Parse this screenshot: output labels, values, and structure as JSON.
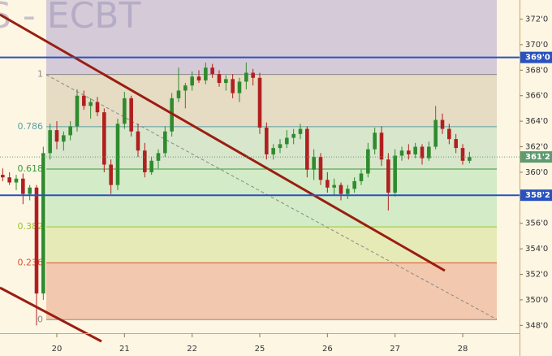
{
  "chart_data": {
    "type": "candlestick",
    "title": "S - ECBT",
    "xlim": [
      -0.4,
      76.4
    ],
    "ylim": [
      345.6,
      373.5
    ],
    "xticks": [
      {
        "value": 8,
        "label": "20"
      },
      {
        "value": 18,
        "label": "21"
      },
      {
        "value": 28,
        "label": "22"
      },
      {
        "value": 38,
        "label": "25"
      },
      {
        "value": 48,
        "label": "26"
      },
      {
        "value": 58,
        "label": "27"
      },
      {
        "value": 68,
        "label": "28"
      }
    ],
    "yticks": [
      {
        "value": 348,
        "label": "348'0"
      },
      {
        "value": 350,
        "label": "350'0"
      },
      {
        "value": 352,
        "label": "352'0"
      },
      {
        "value": 354,
        "label": "354'0"
      },
      {
        "value": 356,
        "label": "356'0"
      },
      {
        "value": 358,
        "label": "358'0"
      },
      {
        "value": 360,
        "label": "360'0"
      },
      {
        "value": 362,
        "label": "362'0"
      },
      {
        "value": 364,
        "label": "364'0"
      },
      {
        "value": 366,
        "label": "366'0"
      },
      {
        "value": 368,
        "label": "368'0"
      },
      {
        "value": 370,
        "label": "370'0"
      },
      {
        "value": 372,
        "label": "372'0"
      }
    ],
    "up_color": "#2e8b2e",
    "down_color": "#b02020",
    "open": [
      359.8,
      359.6,
      359.2,
      359.5,
      358.3,
      358.8,
      350.5,
      361.5,
      363.3,
      362.4,
      362.9,
      363.6,
      366.0,
      365.2,
      365.5,
      364.7,
      360.6,
      359.0,
      363.8,
      365.8,
      363.2,
      361.7,
      360.0,
      360.9,
      361.5,
      363.2,
      365.8,
      366.4,
      366.8,
      367.5,
      367.2,
      368.2,
      367.7,
      367.0,
      367.3,
      366.2,
      367.1,
      367.8,
      367.4,
      363.5,
      361.4,
      361.9,
      362.2,
      362.7,
      363.0,
      363.4,
      360.2,
      361.2,
      359.4,
      358.8,
      359.0,
      358.3,
      358.7,
      359.3,
      359.9,
      361.8,
      363.1,
      361.0,
      358.4,
      361.3,
      361.7,
      361.4,
      362.0,
      361.1,
      362.0,
      364.1,
      363.4,
      362.6,
      361.9,
      360.9
    ],
    "high": [
      360.3,
      360.0,
      359.8,
      359.9,
      359.0,
      359.0,
      362.0,
      363.8,
      364.0,
      363.2,
      364.0,
      366.5,
      366.4,
      365.8,
      365.9,
      365.0,
      361.0,
      364.2,
      366.3,
      366.0,
      363.8,
      362.3,
      361.2,
      361.8,
      363.6,
      366.2,
      368.2,
      367.0,
      367.9,
      368.0,
      368.6,
      368.5,
      368.0,
      367.6,
      367.7,
      367.4,
      368.6,
      368.1,
      367.8,
      363.9,
      362.2,
      362.6,
      363.3,
      363.4,
      363.8,
      363.6,
      361.8,
      361.5,
      360.0,
      359.5,
      359.2,
      359.0,
      359.6,
      360.2,
      362.3,
      363.5,
      363.6,
      361.5,
      361.8,
      362.0,
      362.2,
      362.3,
      362.2,
      362.4,
      365.2,
      364.6,
      363.8,
      363.0,
      362.2,
      361.6
    ],
    "low": [
      359.3,
      359.0,
      358.6,
      357.5,
      357.8,
      348.0,
      350.0,
      361.0,
      361.8,
      361.7,
      362.5,
      363.2,
      364.9,
      364.2,
      364.4,
      360.0,
      358.3,
      358.6,
      363.4,
      362.8,
      361.2,
      359.6,
      359.8,
      360.3,
      361.2,
      362.8,
      365.5,
      365.0,
      366.4,
      367.0,
      366.9,
      367.4,
      366.7,
      366.4,
      365.8,
      365.5,
      366.5,
      366.8,
      363.0,
      361.0,
      361.0,
      361.5,
      361.9,
      362.2,
      362.6,
      359.6,
      359.4,
      359.0,
      358.4,
      358.2,
      357.8,
      357.9,
      358.4,
      359.0,
      359.6,
      361.4,
      360.5,
      357.0,
      358.1,
      360.9,
      361.0,
      361.1,
      360.6,
      360.9,
      361.8,
      363.0,
      362.2,
      361.5,
      360.6,
      360.7
    ],
    "close": [
      359.6,
      359.2,
      359.5,
      358.3,
      358.8,
      350.5,
      361.5,
      363.3,
      362.4,
      362.9,
      363.6,
      366.0,
      365.2,
      365.5,
      364.7,
      360.6,
      359.0,
      363.8,
      365.8,
      363.2,
      361.7,
      360.0,
      360.9,
      361.5,
      363.2,
      365.8,
      366.4,
      366.8,
      367.5,
      367.2,
      368.2,
      367.7,
      367.0,
      367.3,
      366.2,
      367.1,
      367.8,
      367.4,
      363.5,
      361.4,
      361.9,
      362.2,
      362.7,
      363.0,
      363.4,
      360.2,
      361.2,
      359.4,
      358.8,
      359.0,
      358.3,
      358.7,
      359.3,
      359.9,
      361.8,
      363.1,
      361.0,
      358.4,
      361.3,
      361.7,
      361.4,
      362.0,
      361.1,
      362.0,
      364.1,
      363.4,
      362.6,
      361.9,
      360.9,
      361.2
    ],
    "fib_top_fill": "#d5cbd8",
    "fib_levels": [
      {
        "label": "1",
        "value": 367.66,
        "color": "#8a8a8a",
        "fill": "#e6dbc3"
      },
      {
        "label": "0.786",
        "value": 363.57,
        "color": "#5a9fa8",
        "fill": "#d8e6cc"
      },
      {
        "label": "0.618",
        "value": 360.25,
        "color": "#3c9a3c",
        "fill": "#d3ebc6"
      },
      {
        "label": "0.382",
        "value": 355.72,
        "color": "#9cc430",
        "fill": "#e6eab6"
      },
      {
        "label": "0.236",
        "value": 352.9,
        "color": "#e05030",
        "fill": "#f2c8ae"
      },
      {
        "label": "0",
        "value": 348.45,
        "color": "#8a8a8a"
      }
    ],
    "price_lines": [
      {
        "value": 369,
        "label": "369'0",
        "color": "#2a52be",
        "style": "solid"
      },
      {
        "value": 358.2,
        "label": "358'2",
        "color": "#2a52be",
        "style": "solid"
      },
      {
        "value": 361.2,
        "label": "361'2",
        "color": "#5f9a70",
        "style": "dotted"
      }
    ]
  }
}
